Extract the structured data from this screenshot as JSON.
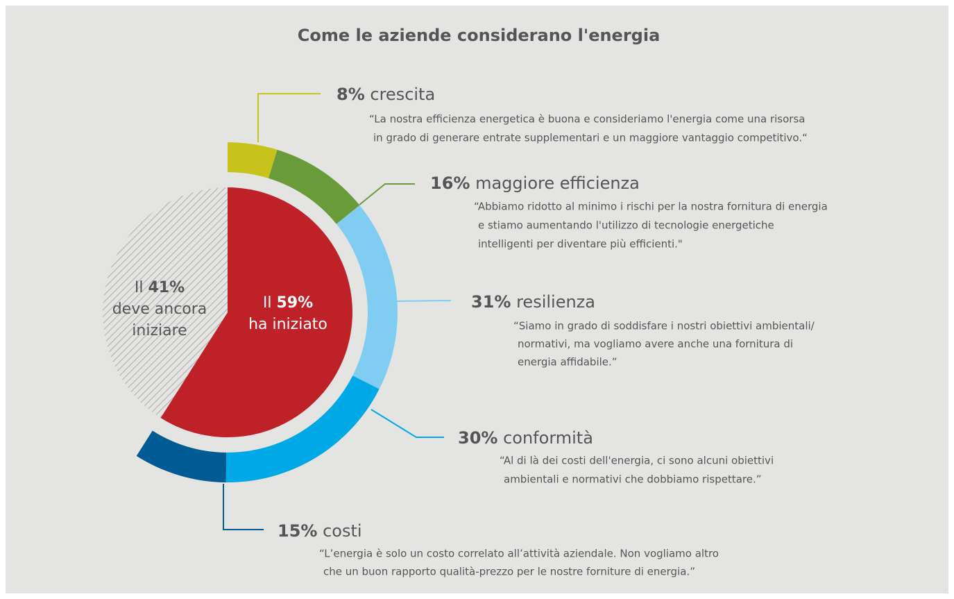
{
  "chart_data": {
    "type": "nested-pie",
    "title": "Come le aziende considerano l'energia",
    "inner": {
      "values": [
        59,
        41
      ],
      "value_labels": [
        "59%",
        "41%"
      ],
      "prefixes": [
        "Il",
        "Il"
      ],
      "captions": [
        [
          "ha iniziato"
        ],
        [
          "deve ancora",
          "iniziare"
        ]
      ],
      "colors": [
        "#be2127",
        "hatch"
      ]
    },
    "outer": {
      "categories": [
        "crescita",
        "maggiore efficienza",
        "resilienza",
        "conformità",
        "costi"
      ],
      "values": [
        8,
        16,
        31,
        30,
        15
      ],
      "value_labels": [
        "8%",
        "16%",
        "31%",
        "30%",
        "15%"
      ],
      "colors": [
        "#c8c31c",
        "#6a9b3b",
        "#80cdf1",
        "#00a9e6",
        "#005a94"
      ],
      "quotes": [
        [
          "“La nostra efficienza energetica è buona e consideriamo l'energia come una risorsa",
          "in grado di generare entrate supplementari e un maggiore vantaggio competitivo.“"
        ],
        [
          "“Abbiamo ridotto al minimo i rischi per la nostra fornitura di energia",
          "e stiamo aumentando l'utilizzo di tecnologie energetiche",
          "intelligenti per diventare più efficienti.\""
        ],
        [
          "“Siamo in grado di soddisfare i nostri obiettivi ambientali/",
          "normativi, ma vogliamo avere anche una fornitura di",
          "energia affidabile.”"
        ],
        [
          "“Al di là dei costi dell'energia, ci sono alcuni obiettivi",
          "ambientali e normativi che dobbiamo rispettare.”"
        ],
        [
          "“L’energia è solo un costo correlato all’attività aziendale. Non vogliamo altro",
          "che un buon rapporto qualità-prezzo per le nostre forniture di energia.”"
        ]
      ]
    }
  }
}
